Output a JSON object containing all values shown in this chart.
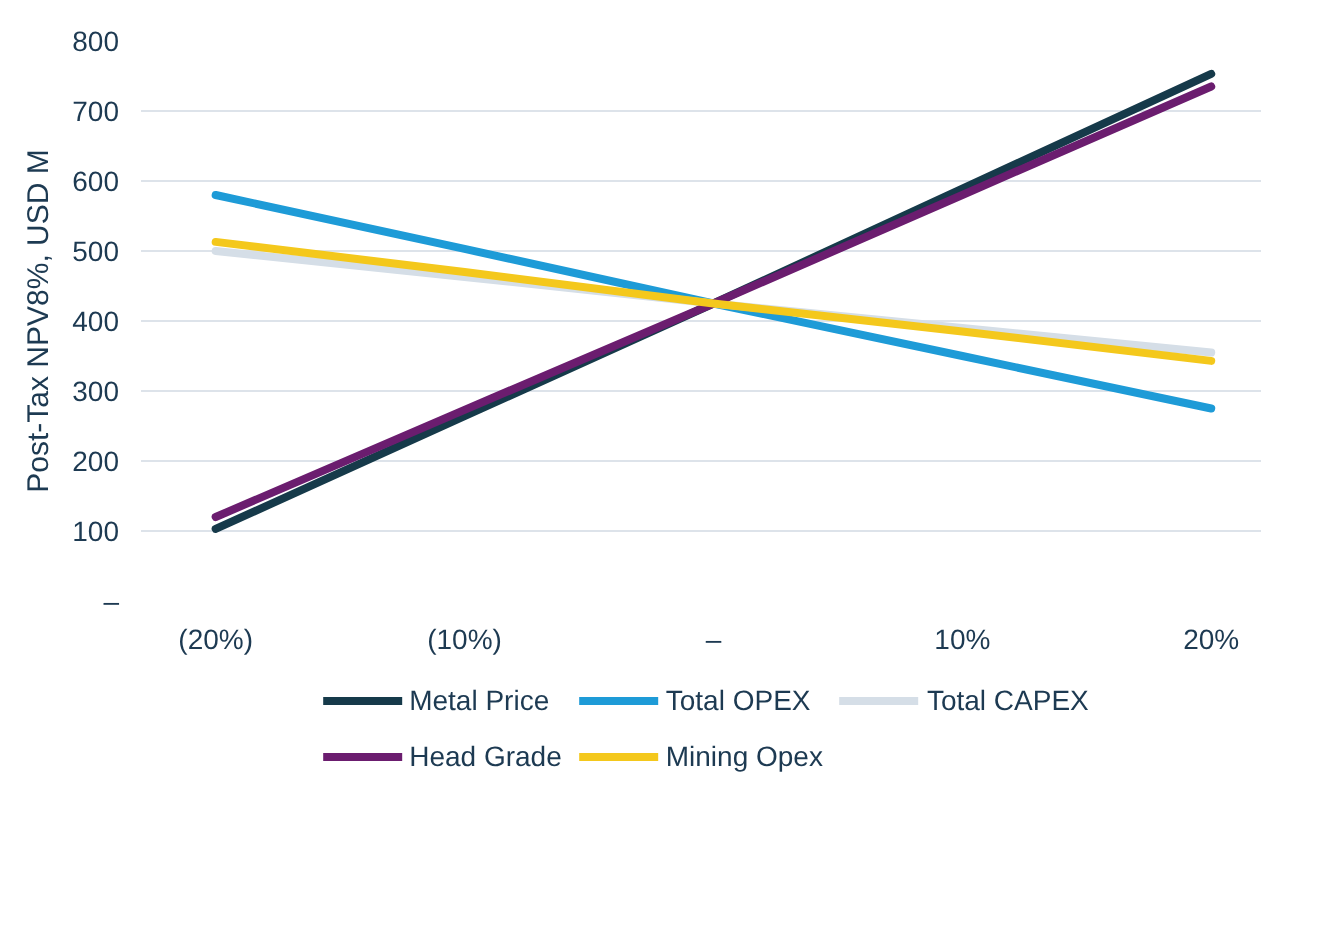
{
  "chart_data": {
    "type": "line",
    "ylabel": "Post-Tax NPV8%, USD M",
    "x": [
      -20,
      -10,
      0,
      10,
      20
    ],
    "xlim": [
      -23,
      22
    ],
    "ylim": [
      0,
      800
    ],
    "xticks": [
      {
        "value": -20,
        "label": "(20%)"
      },
      {
        "value": -10,
        "label": "(10%)"
      },
      {
        "value": 0,
        "label": "–"
      },
      {
        "value": 10,
        "label": "10%"
      },
      {
        "value": 20,
        "label": "20%"
      }
    ],
    "yticks": [
      {
        "value": 0,
        "label": "–"
      },
      100,
      200,
      300,
      400,
      500,
      600,
      700,
      800
    ],
    "grid": "y",
    "legend": "bottom",
    "line_style": "solid",
    "marker": "none",
    "series": [
      {
        "name": "Metal Price",
        "color": "#163a4a",
        "values": [
          103,
          264,
          425,
          589,
          753
        ]
      },
      {
        "name": "Total OPEX",
        "color": "#1e9bd7",
        "values": [
          580,
          503,
          425,
          350,
          275
        ]
      },
      {
        "name": "Total CAPEX",
        "color": "#d5dee7",
        "values": [
          500,
          463,
          425,
          390,
          355
        ]
      },
      {
        "name": "Head Grade",
        "color": "#6b1d6f",
        "values": [
          120,
          273,
          425,
          580,
          735
        ]
      },
      {
        "name": "Mining Opex",
        "color": "#f4c81c",
        "values": [
          513,
          470,
          425,
          385,
          343
        ]
      }
    ]
  }
}
